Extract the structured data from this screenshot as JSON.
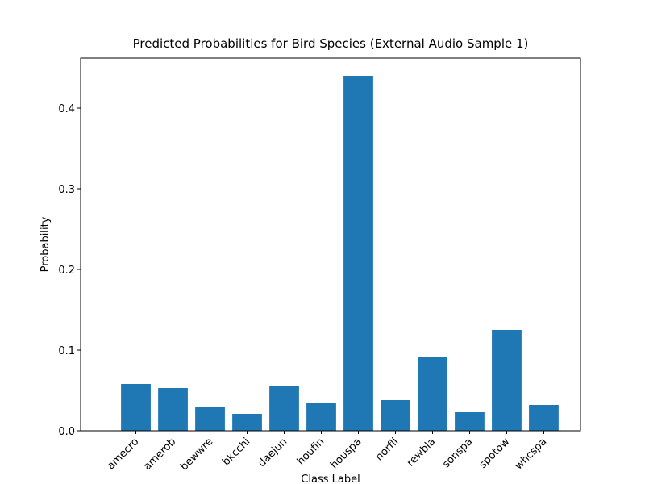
{
  "chart_data": {
    "type": "bar",
    "title": "Predicted Probabilities for Bird Species (External Audio Sample 1)",
    "xlabel": "Class Label",
    "ylabel": "Probability",
    "categories": [
      "amecro",
      "amerob",
      "bewwre",
      "bkcchi",
      "daejun",
      "houfin",
      "houspa",
      "norfli",
      "rewbla",
      "sonspa",
      "spotow",
      "whcspa"
    ],
    "values": [
      0.058,
      0.053,
      0.03,
      0.021,
      0.055,
      0.035,
      0.44,
      0.038,
      0.092,
      0.023,
      0.125,
      0.032
    ],
    "color": "#1f77b4",
    "ylim": [
      0,
      0.462
    ],
    "yticks": [
      {
        "value": 0,
        "label": "0.0"
      },
      0.1,
      0.2,
      0.3,
      0.4
    ]
  }
}
